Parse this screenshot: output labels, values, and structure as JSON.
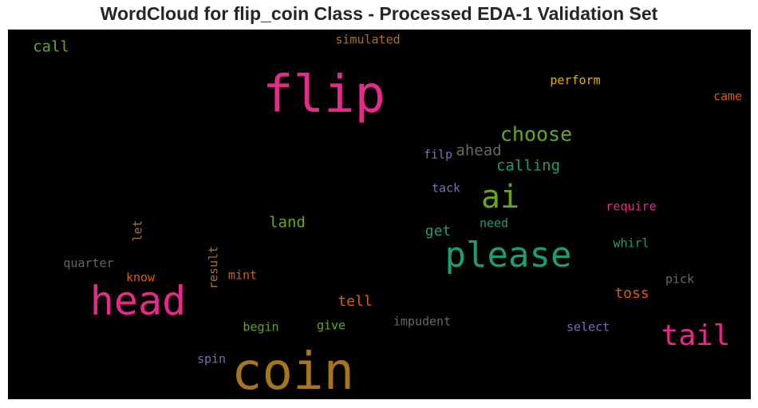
{
  "chart_data": {
    "type": "wordcloud",
    "title": "WordCloud for flip_coin Class - Processed EDA-1 Validation Set",
    "background": "#000000",
    "words": [
      {
        "text": "coin",
        "color": "#a6761d"
      },
      {
        "text": "flip",
        "color": "#e7298a"
      },
      {
        "text": "head",
        "color": "#e7298a"
      },
      {
        "text": "please",
        "color": "#1b9e77"
      },
      {
        "text": "ai",
        "color": "#66a61e"
      },
      {
        "text": "tail",
        "color": "#e7298a"
      },
      {
        "text": "choose",
        "color": "#66a61e"
      },
      {
        "text": "calling",
        "color": "#1b9e77"
      },
      {
        "text": "ahead",
        "color": "#666666"
      },
      {
        "text": "filp",
        "color": "#7570b3"
      },
      {
        "text": "tack",
        "color": "#7570b3"
      },
      {
        "text": "need",
        "color": "#1b9e77"
      },
      {
        "text": "get",
        "color": "#1b9e77"
      },
      {
        "text": "land",
        "color": "#66a61e"
      },
      {
        "text": "call",
        "color": "#66a61e"
      },
      {
        "text": "simulated",
        "color": "#a6761d"
      },
      {
        "text": "perform",
        "color": "#e6ab02"
      },
      {
        "text": "came",
        "color": "#d95f02"
      },
      {
        "text": "require",
        "color": "#e7298a"
      },
      {
        "text": "whirl",
        "color": "#1b9e77"
      },
      {
        "text": "pick",
        "color": "#666666"
      },
      {
        "text": "toss",
        "color": "#d95f02"
      },
      {
        "text": "select",
        "color": "#7570b3"
      },
      {
        "text": "impudent",
        "color": "#666666"
      },
      {
        "text": "tell",
        "color": "#d95f02"
      },
      {
        "text": "give",
        "color": "#66a61e"
      },
      {
        "text": "begin",
        "color": "#66a61e"
      },
      {
        "text": "spin",
        "color": "#7570b3"
      },
      {
        "text": "mint",
        "color": "#d95f02"
      },
      {
        "text": "know",
        "color": "#d95f02"
      },
      {
        "text": "quarter",
        "color": "#666666"
      },
      {
        "text": "result",
        "color": "#a6761d"
      },
      {
        "text": "let",
        "color": "#a6761d"
      }
    ]
  }
}
